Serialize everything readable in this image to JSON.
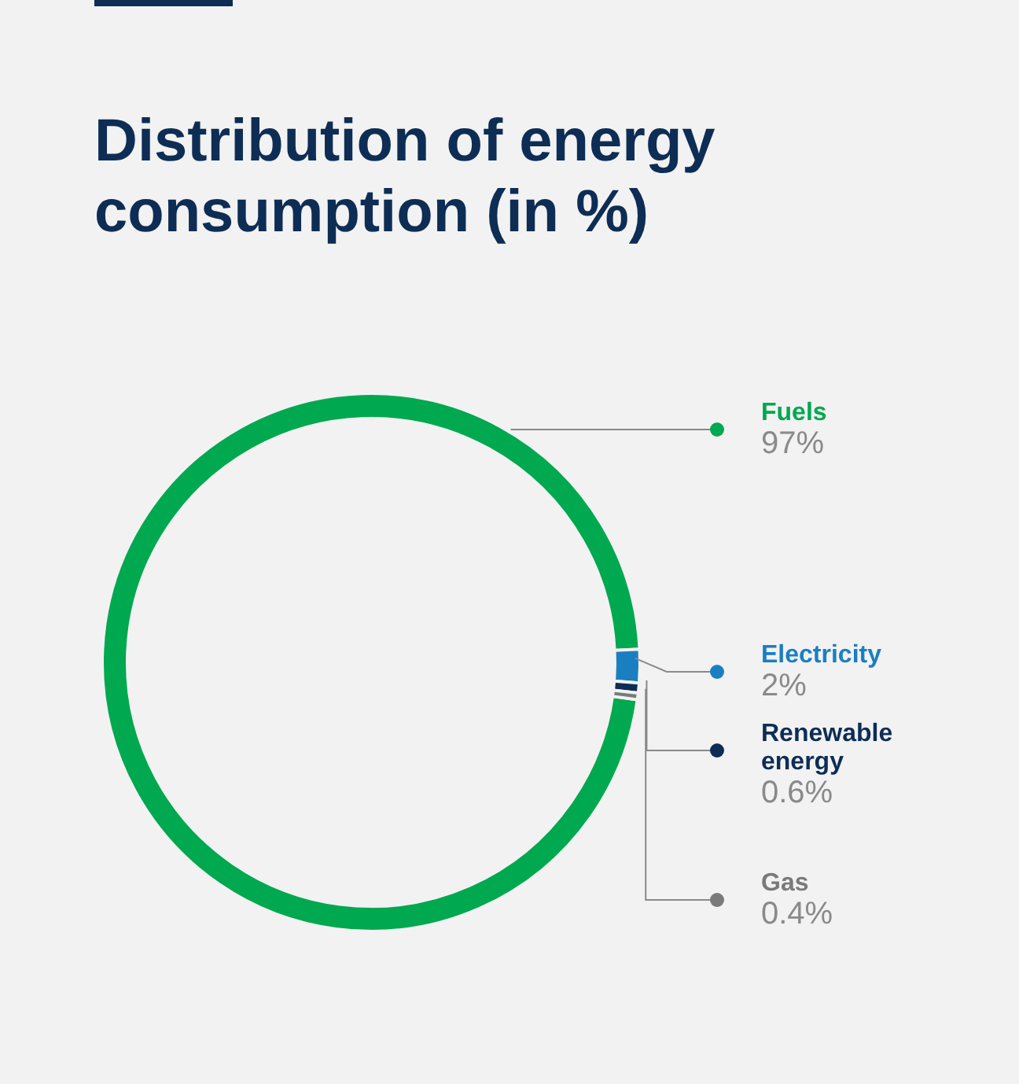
{
  "chart_data": {
    "type": "donut",
    "title": "Distribution of energy consumption (in %)",
    "categories": [
      "Fuels",
      "Electricity",
      "Renewable energy",
      "Gas"
    ],
    "values": [
      97,
      2,
      0.6,
      0.4
    ],
    "colors": [
      "#00a84f",
      "#1a7fc1",
      "#0d2d55",
      "#7a7a7a"
    ],
    "value_labels": [
      "97%",
      "2%",
      "0.6%",
      "0.4%"
    ],
    "legend": "right"
  }
}
